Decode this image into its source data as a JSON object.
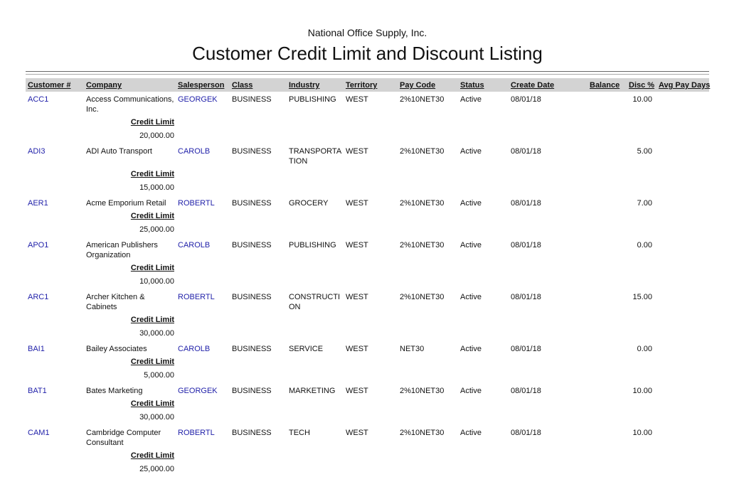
{
  "header": {
    "company": "National Office Supply, Inc.",
    "title": "Customer Credit Limit and Discount Listing"
  },
  "columns": {
    "customer": "Customer #",
    "company": "Company",
    "salesperson": "Salesperson",
    "class": "Class",
    "industry": "Industry",
    "territory": "Territory",
    "pay_code": "Pay Code",
    "status": "Status",
    "create_date": "Create Date",
    "balance": "Balance",
    "disc": "Disc %",
    "avg_pay_days": "Avg Pay Days"
  },
  "credit_limit_label": "Credit Limit",
  "rows": [
    {
      "customer": "ACC1",
      "company": "Access Communications, Inc.",
      "salesperson": "GEORGEK",
      "class": "BUSINESS",
      "industry": "PUBLISHING",
      "territory": "WEST",
      "pay_code": "2%10NET30",
      "status": "Active",
      "create_date": "08/01/18",
      "disc": "10.00",
      "credit_limit": "20,000.00"
    },
    {
      "customer": "ADI3",
      "company": "ADI Auto Transport",
      "salesperson": "CAROLB",
      "class": "BUSINESS",
      "industry": "TRANSPORTATION",
      "territory": "WEST",
      "pay_code": "2%10NET30",
      "status": "Active",
      "create_date": "08/01/18",
      "disc": "5.00",
      "credit_limit": "15,000.00"
    },
    {
      "customer": "AER1",
      "company": "Acme Emporium Retail",
      "salesperson": "ROBERTL",
      "class": "BUSINESS",
      "industry": "GROCERY",
      "territory": "WEST",
      "pay_code": "2%10NET30",
      "status": "Active",
      "create_date": "08/01/18",
      "disc": "7.00",
      "credit_limit": "25,000.00"
    },
    {
      "customer": "APO1",
      "company": "American Publishers Organization",
      "salesperson": "CAROLB",
      "class": "BUSINESS",
      "industry": "PUBLISHING",
      "territory": "WEST",
      "pay_code": "2%10NET30",
      "status": "Active",
      "create_date": "08/01/18",
      "disc": "0.00",
      "credit_limit": "10,000.00"
    },
    {
      "customer": "ARC1",
      "company": "Archer Kitchen & Cabinets",
      "salesperson": "ROBERTL",
      "class": "BUSINESS",
      "industry": "CONSTRUCTION",
      "territory": "WEST",
      "pay_code": "2%10NET30",
      "status": "Active",
      "create_date": "08/01/18",
      "disc": "15.00",
      "credit_limit": "30,000.00"
    },
    {
      "customer": "BAI1",
      "company": "Bailey Associates",
      "salesperson": "CAROLB",
      "class": "BUSINESS",
      "industry": "SERVICE",
      "territory": "WEST",
      "pay_code": "NET30",
      "status": "Active",
      "create_date": "08/01/18",
      "disc": "0.00",
      "credit_limit": "5,000.00"
    },
    {
      "customer": "BAT1",
      "company": "Bates Marketing",
      "salesperson": "GEORGEK",
      "class": "BUSINESS",
      "industry": "MARKETING",
      "territory": "WEST",
      "pay_code": "2%10NET30",
      "status": "Active",
      "create_date": "08/01/18",
      "disc": "10.00",
      "credit_limit": "30,000.00"
    },
    {
      "customer": "CAM1",
      "company": "Cambridge Computer Consultant",
      "salesperson": "ROBERTL",
      "class": "BUSINESS",
      "industry": "TECH",
      "territory": "WEST",
      "pay_code": "2%10NET30",
      "status": "Active",
      "create_date": "08/01/18",
      "disc": "10.00",
      "credit_limit": "25,000.00"
    }
  ]
}
